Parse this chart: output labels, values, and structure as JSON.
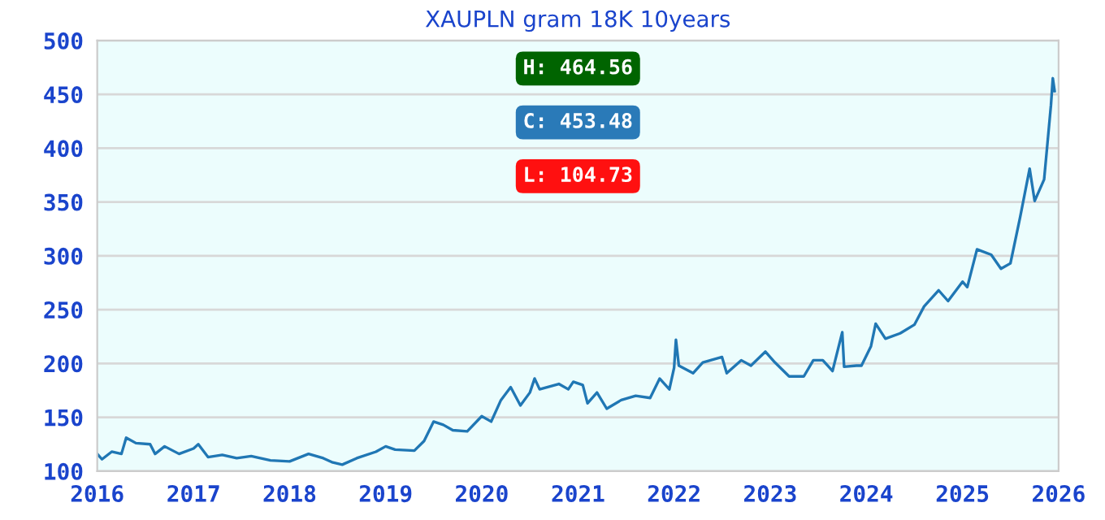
{
  "chart_data": {
    "type": "line",
    "title": "XAUPLN gram 18K 10years",
    "x": [
      "2016-01-01",
      "2016-01-19",
      "2016-02-25",
      "2016-04-02",
      "2016-04-20",
      "2016-05-27",
      "2016-07-20",
      "2016-08-08",
      "2016-09-13",
      "2016-11-07",
      "2017-01-01",
      "2017-01-19",
      "2017-02-25",
      "2017-04-20",
      "2017-06-14",
      "2017-08-08",
      "2017-10-20",
      "2018-01-01",
      "2018-03-14",
      "2018-05-09",
      "2018-06-14",
      "2018-07-20",
      "2018-09-13",
      "2018-11-25",
      "2019-01-01",
      "2019-02-06",
      "2019-04-20",
      "2019-05-27",
      "2019-07-02",
      "2019-08-08",
      "2019-09-13",
      "2019-11-07",
      "2020-01-01",
      "2020-02-06",
      "2020-03-14",
      "2020-04-20",
      "2020-05-27",
      "2020-07-02",
      "2020-07-20",
      "2020-08-08",
      "2020-10-20",
      "2020-11-25",
      "2020-12-14",
      "2021-01-19",
      "2021-02-06",
      "2021-03-14",
      "2021-04-20",
      "2021-06-14",
      "2021-08-08",
      "2021-10-02",
      "2021-11-07",
      "2021-12-14",
      "2022-01-01",
      "2022-01-08",
      "2022-01-19",
      "2022-03-14",
      "2022-04-20",
      "2022-07-02",
      "2022-07-20",
      "2022-09-13",
      "2022-10-20",
      "2022-12-14",
      "2023-01-19",
      "2023-03-14",
      "2023-05-09",
      "2023-06-14",
      "2023-07-20",
      "2023-08-26",
      "2023-10-02",
      "2023-10-09",
      "2023-11-25",
      "2023-12-14",
      "2024-01-19",
      "2024-02-06",
      "2024-03-14",
      "2024-05-09",
      "2024-07-02",
      "2024-08-08",
      "2024-10-02",
      "2024-11-07",
      "2025-01-01",
      "2025-01-19",
      "2025-02-25",
      "2025-04-20",
      "2025-05-27",
      "2025-07-02",
      "2025-08-08",
      "2025-09-13",
      "2025-10-02",
      "2025-11-07",
      "2025-11-18",
      "2025-12-03",
      "2025-12-10",
      "2025-12-17"
    ],
    "series": [
      {
        "color": "#2077b4",
        "values": [
          116,
          111,
          118,
          116,
          131,
          126,
          125,
          116,
          123,
          116,
          121,
          125,
          113,
          115,
          112,
          114,
          110,
          109,
          116,
          112,
          108,
          106,
          112,
          118,
          123,
          120,
          119,
          128,
          146,
          143,
          138,
          137,
          151,
          146,
          166,
          178,
          161,
          173,
          186,
          176,
          181,
          176,
          183,
          180,
          163,
          173,
          158,
          166,
          170,
          168,
          186,
          176,
          196,
          222,
          198,
          191,
          201,
          206,
          191,
          203,
          198,
          211,
          201,
          188,
          188,
          203,
          203,
          193,
          229,
          197,
          198,
          198,
          216,
          237,
          223,
          228,
          236,
          253,
          268,
          258,
          276,
          271,
          306,
          301,
          288,
          293,
          336,
          381,
          351,
          371,
          400,
          440,
          465,
          453
        ]
      }
    ],
    "xlim": [
      "2016-01-01",
      "2026-01-01"
    ],
    "xticks": [
      {
        "value": "2016-01-01",
        "label": "2016"
      },
      {
        "value": "2017-01-01",
        "label": "2017"
      },
      {
        "value": "2018-01-01",
        "label": "2018"
      },
      {
        "value": "2019-01-01",
        "label": "2019"
      },
      {
        "value": "2020-01-01",
        "label": "2020"
      },
      {
        "value": "2021-01-01",
        "label": "2021"
      },
      {
        "value": "2022-01-01",
        "label": "2022"
      },
      {
        "value": "2023-01-01",
        "label": "2023"
      },
      {
        "value": "2024-01-01",
        "label": "2024"
      },
      {
        "value": "2025-01-01",
        "label": "2025"
      },
      {
        "value": "2026-01-01",
        "label": "2026"
      }
    ],
    "ylim": [
      100,
      500
    ],
    "yticks": [
      100,
      150,
      200,
      250,
      300,
      350,
      400,
      450,
      500
    ],
    "grid": "y",
    "legend": false,
    "marker": "none",
    "line_style": "solid",
    "annotations": [
      "H: 464.56",
      "C: 453.48",
      "L: 104.73"
    ]
  }
}
